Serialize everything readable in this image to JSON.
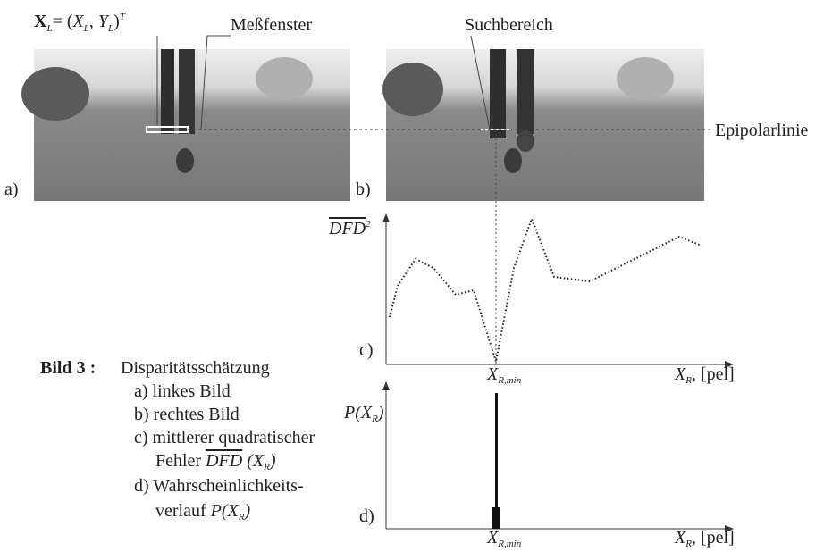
{
  "labels": {
    "formula": [
      "X",
      "L",
      "= (",
      "X",
      "L",
      ", ",
      "Y",
      "L",
      ")",
      "T"
    ],
    "window": "Meßfenster",
    "search": "Suchbereich",
    "epipolar": "Epipolarlinie",
    "a": "a)",
    "b": "b)",
    "c": "c)",
    "d": "d)"
  },
  "plot_c": {
    "y_label": [
      "DFD",
      "2"
    ],
    "x_min": [
      "X",
      "R,min"
    ],
    "x_label": [
      "X",
      "R",
      ", [pel]"
    ]
  },
  "plot_d": {
    "y_label": [
      "P(",
      "X",
      "R",
      ")"
    ],
    "x_min": [
      "X",
      "R,min"
    ],
    "x_label": [
      "X",
      "R",
      ", [pel]"
    ]
  },
  "caption": {
    "title": "Bild 3 :",
    "heading": "Disparitätsschätzung",
    "items": [
      "a) linkes Bild",
      "b) rechtes Bild",
      "c) mittlerer quadratischer"
    ],
    "item_c2": [
      "Fehler ",
      "DFD",
      " (",
      "X",
      "R",
      ")"
    ],
    "item_d1": "d) Wahrscheinlichkeits-",
    "item_d2": [
      "verlauf ",
      "P(",
      "X",
      "R",
      ")"
    ]
  }
}
